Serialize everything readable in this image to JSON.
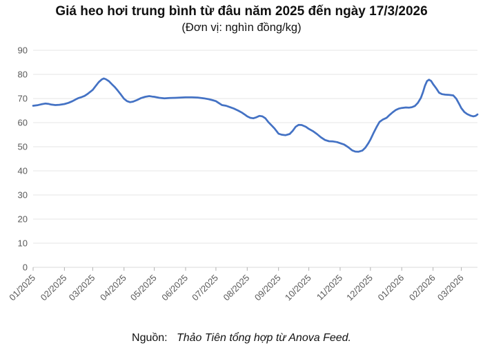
{
  "title": "Giá heo hơi trung bình từ đâu năm 2025 đến ngày 17/3/2026",
  "subtitle": "(Đơn vị: nghìn đồng/kg)",
  "source": {
    "label": "Nguồn:",
    "text": "Thảo Tiên tổng hợp từ Anova Feed."
  },
  "colors": {
    "line": "#4472c4",
    "gridline": "#e6e6e6",
    "axis": "#d9d9d9",
    "tick": "#b0b0b0",
    "tick_label": "#595959"
  },
  "chart_data": {
    "type": "line",
    "title": "Giá heo hơi trung bình từ đâu năm 2025 đến ngày 17/3/2026",
    "subtitle": "(Đơn vị: nghìn đồng/kg)",
    "ylabel": "nghìn đồng/kg",
    "xlabel": "",
    "ylim": [
      0,
      90
    ],
    "y_ticks": [
      0,
      10,
      20,
      30,
      40,
      50,
      60,
      70,
      80,
      90
    ],
    "grid": "horizontal",
    "legend": "none",
    "x_domain_days": [
      0,
      440
    ],
    "x_tick_labels": [
      "01/2025",
      "02/2025",
      "03/2025",
      "04/2025",
      "05/2025",
      "06/2025",
      "07/2025",
      "08/2025",
      "09/2025",
      "10/2025",
      "11/2025",
      "12/2025",
      "01/2026",
      "02/2026",
      "03/2026"
    ],
    "x_tick_days": [
      0,
      31,
      59,
      90,
      120,
      151,
      181,
      212,
      243,
      273,
      304,
      334,
      365,
      396,
      424
    ],
    "series_name": "Giá heo hơi (nghìn đồng/kg)",
    "points": [
      [
        0,
        67.0
      ],
      [
        4,
        67.2
      ],
      [
        8,
        67.6
      ],
      [
        12,
        67.9
      ],
      [
        15,
        67.8
      ],
      [
        18,
        67.5
      ],
      [
        22,
        67.3
      ],
      [
        26,
        67.4
      ],
      [
        31,
        67.7
      ],
      [
        35,
        68.2
      ],
      [
        39,
        68.9
      ],
      [
        42,
        69.6
      ],
      [
        45,
        70.2
      ],
      [
        48,
        70.6
      ],
      [
        51,
        71.1
      ],
      [
        54,
        71.9
      ],
      [
        57,
        72.9
      ],
      [
        59,
        73.6
      ],
      [
        62,
        75.2
      ],
      [
        65,
        76.8
      ],
      [
        68,
        77.9
      ],
      [
        70,
        78.3
      ],
      [
        72,
        78.0
      ],
      [
        75,
        77.2
      ],
      [
        78,
        75.9
      ],
      [
        81,
        74.7
      ],
      [
        84,
        73.2
      ],
      [
        87,
        71.6
      ],
      [
        90,
        69.9
      ],
      [
        93,
        68.9
      ],
      [
        96,
        68.5
      ],
      [
        99,
        68.7
      ],
      [
        103,
        69.4
      ],
      [
        107,
        70.2
      ],
      [
        111,
        70.7
      ],
      [
        115,
        71.0
      ],
      [
        118,
        70.8
      ],
      [
        120,
        70.7
      ],
      [
        125,
        70.3
      ],
      [
        130,
        70.1
      ],
      [
        135,
        70.2
      ],
      [
        141,
        70.3
      ],
      [
        146,
        70.4
      ],
      [
        151,
        70.5
      ],
      [
        157,
        70.5
      ],
      [
        163,
        70.4
      ],
      [
        169,
        70.1
      ],
      [
        174,
        69.7
      ],
      [
        178,
        69.3
      ],
      [
        181,
        68.9
      ],
      [
        184,
        68.1
      ],
      [
        187,
        67.3
      ],
      [
        191,
        67.0
      ],
      [
        195,
        66.4
      ],
      [
        199,
        65.8
      ],
      [
        203,
        65.0
      ],
      [
        207,
        64.1
      ],
      [
        210,
        63.2
      ],
      [
        212,
        62.6
      ],
      [
        215,
        62.0
      ],
      [
        218,
        61.8
      ],
      [
        221,
        62.2
      ],
      [
        224,
        62.8
      ],
      [
        227,
        62.6
      ],
      [
        230,
        61.8
      ],
      [
        233,
        60.2
      ],
      [
        236,
        58.9
      ],
      [
        239,
        57.6
      ],
      [
        243,
        55.4
      ],
      [
        246,
        55.0
      ],
      [
        250,
        54.8
      ],
      [
        254,
        55.3
      ],
      [
        257,
        56.6
      ],
      [
        260,
        58.3
      ],
      [
        263,
        59.1
      ],
      [
        266,
        59.0
      ],
      [
        270,
        58.3
      ],
      [
        273,
        57.4
      ],
      [
        277,
        56.5
      ],
      [
        281,
        55.3
      ],
      [
        285,
        53.9
      ],
      [
        289,
        52.8
      ],
      [
        293,
        52.3
      ],
      [
        297,
        52.2
      ],
      [
        301,
        51.9
      ],
      [
        304,
        51.5
      ],
      [
        308,
        50.9
      ],
      [
        312,
        49.8
      ],
      [
        316,
        48.5
      ],
      [
        319,
        48.0
      ],
      [
        322,
        47.9
      ],
      [
        326,
        48.4
      ],
      [
        329,
        49.6
      ],
      [
        332,
        51.5
      ],
      [
        334,
        53.0
      ],
      [
        337,
        55.6
      ],
      [
        340,
        58.1
      ],
      [
        343,
        60.3
      ],
      [
        346,
        61.2
      ],
      [
        350,
        62.0
      ],
      [
        353,
        63.2
      ],
      [
        356,
        64.3
      ],
      [
        359,
        65.2
      ],
      [
        362,
        65.8
      ],
      [
        365,
        66.1
      ],
      [
        369,
        66.3
      ],
      [
        372,
        66.2
      ],
      [
        375,
        66.4
      ],
      [
        378,
        66.9
      ],
      [
        381,
        68.2
      ],
      [
        384,
        70.3
      ],
      [
        386,
        72.6
      ],
      [
        388,
        75.3
      ],
      [
        390,
        77.2
      ],
      [
        392,
        77.8
      ],
      [
        394,
        77.3
      ],
      [
        396,
        76.0
      ],
      [
        399,
        74.3
      ],
      [
        402,
        72.4
      ],
      [
        405,
        71.8
      ],
      [
        408,
        71.6
      ],
      [
        412,
        71.5
      ],
      [
        416,
        71.3
      ],
      [
        419,
        69.9
      ],
      [
        422,
        67.6
      ],
      [
        424,
        66.0
      ],
      [
        427,
        64.4
      ],
      [
        430,
        63.5
      ],
      [
        433,
        62.9
      ],
      [
        436,
        62.6
      ],
      [
        438,
        62.8
      ],
      [
        440,
        63.4
      ]
    ]
  }
}
